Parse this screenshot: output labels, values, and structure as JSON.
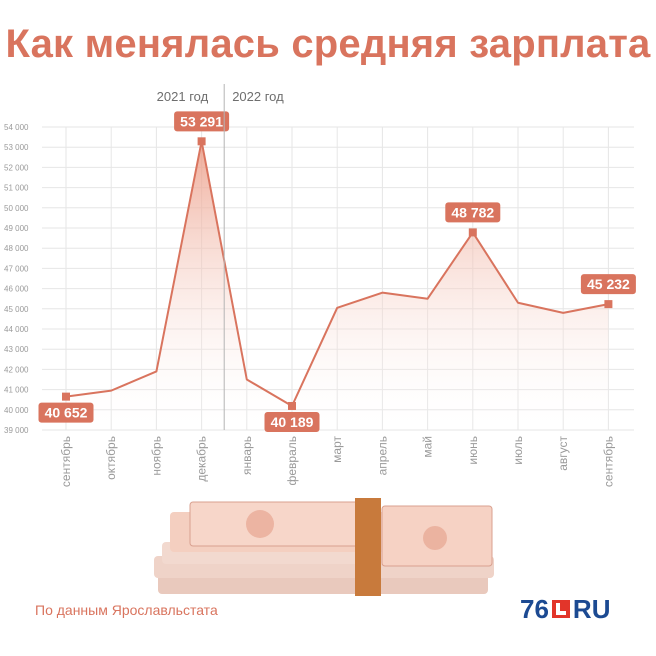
{
  "title": "Как менялась средняя зарплата",
  "source": "По данным Ярославльстата",
  "logo": {
    "number": "76",
    "domain": "RU"
  },
  "colors": {
    "accent": "#d9745e",
    "line": "#d9745e",
    "marker": "#d9745e",
    "grid": "#e6e6e6",
    "axis_text": "#9a9a9a",
    "logo_blue": "#1c4a92",
    "logo_red": "#e2352a"
  },
  "chart_data": {
    "type": "area",
    "year_labels": [
      "2021 год",
      "2022 год"
    ],
    "categories": [
      "сентябрь",
      "октябрь",
      "ноябрь",
      "декабрь",
      "январь",
      "февраль",
      "март",
      "апрель",
      "май",
      "июнь",
      "июль",
      "август",
      "сентябрь"
    ],
    "values": [
      40652,
      40950,
      41900,
      53291,
      41500,
      40189,
      45050,
      45800,
      45500,
      48782,
      45300,
      44800,
      45232
    ],
    "data_labels": [
      {
        "index": 0,
        "text": "40 652"
      },
      {
        "index": 3,
        "text": "53 291"
      },
      {
        "index": 5,
        "text": "40 189"
      },
      {
        "index": 9,
        "text": "48 782"
      },
      {
        "index": 12,
        "text": "45 232"
      }
    ],
    "ylim": [
      39000,
      54000
    ],
    "yticks": [
      "39 000",
      "40 000",
      "41 000",
      "42 000",
      "43 000",
      "44 000",
      "45 000",
      "46 000",
      "47 000",
      "48 000",
      "49 000",
      "50 000",
      "51 000",
      "52 000",
      "53 000",
      "54 000"
    ],
    "grid": true
  }
}
